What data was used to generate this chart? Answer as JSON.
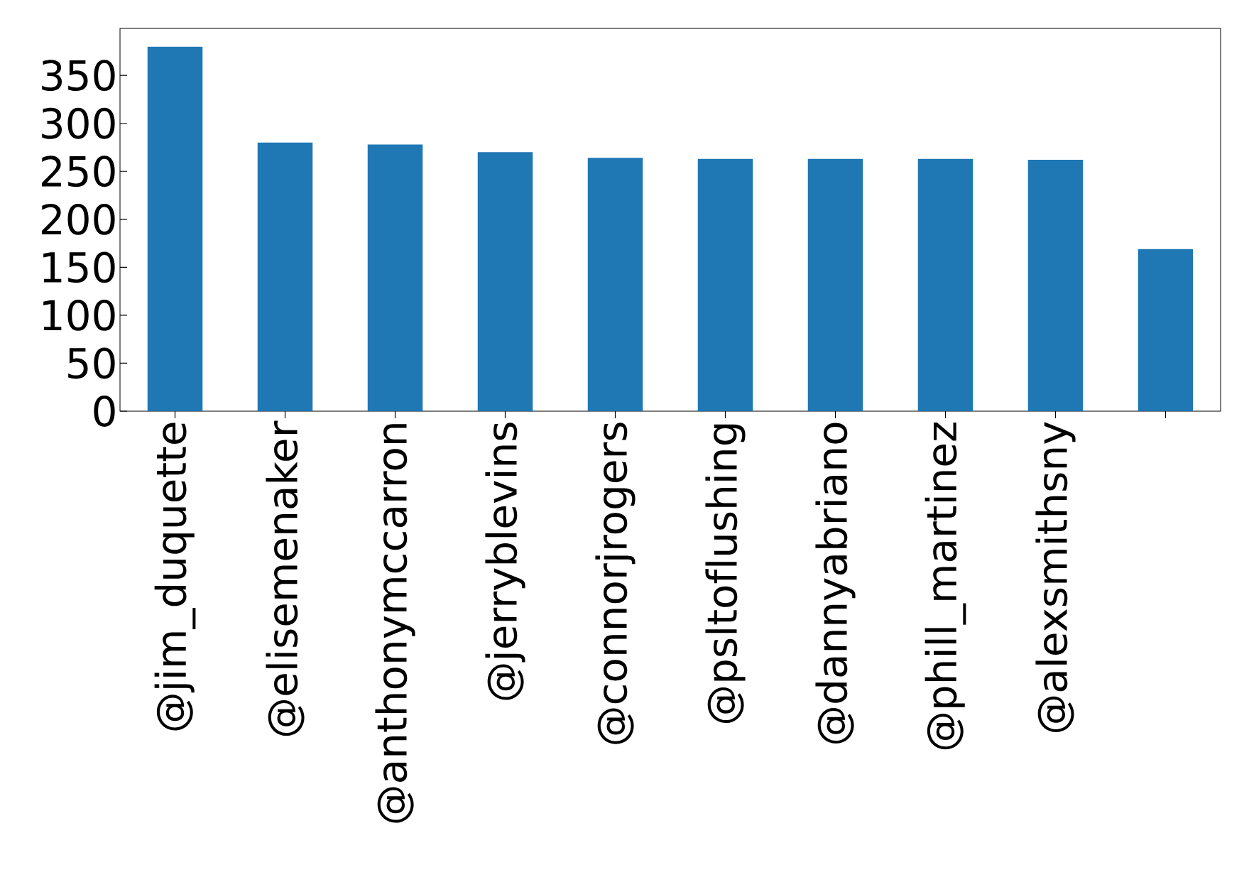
{
  "chart_data": {
    "type": "bar",
    "categories": [
      "@jim_duquette",
      "@elisemenaker",
      "@anthonymccarron",
      "@jerryblevins",
      "@connorjrogers",
      "@psltoflushing",
      "@dannyabriano",
      "@phill_martinez",
      "@alexsmithsny",
      null
    ],
    "values": [
      380,
      280,
      278,
      270,
      264,
      263,
      263,
      263,
      262,
      169
    ],
    "color": "#1f77b4",
    "ylim": [
      0,
      399
    ],
    "yticks": [
      0,
      50,
      100,
      150,
      200,
      250,
      300,
      350
    ],
    "grid": false
  }
}
